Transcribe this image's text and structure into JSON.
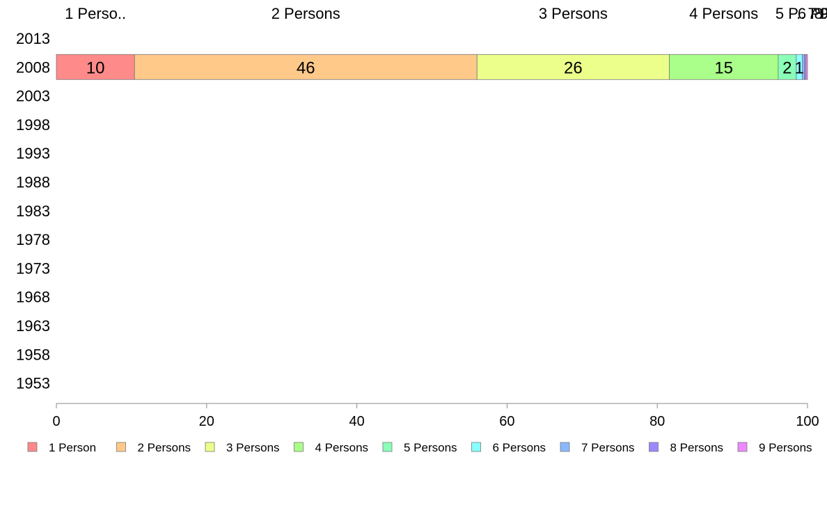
{
  "chart_data": {
    "type": "bar",
    "orientation": "horizontal",
    "stacked": true,
    "categories": [
      "2013",
      "2008",
      "2003",
      "1998",
      "1993",
      "1988",
      "1983",
      "1978",
      "1973",
      "1968",
      "1963",
      "1958",
      "1953"
    ],
    "xlim": [
      0,
      100
    ],
    "xticks": [
      0,
      20,
      40,
      60,
      80,
      100
    ],
    "grid": false,
    "legend_position": "bottom",
    "top_labels": [
      "1 Perso..",
      "2 Persons",
      "3 Persons",
      "4 Persons",
      "5 P..",
      "6 P..",
      "7 P..",
      "8 P..",
      "9 P.."
    ],
    "series": [
      {
        "name": "1 Person",
        "color": "#ff8a8a",
        "values": [
          null,
          10.4,
          null,
          null,
          null,
          null,
          null,
          null,
          null,
          null,
          null,
          null,
          null
        ],
        "label": "10"
      },
      {
        "name": "2 Persons",
        "color": "#ffc98a",
        "values": [
          null,
          45.6,
          null,
          null,
          null,
          null,
          null,
          null,
          null,
          null,
          null,
          null,
          null
        ],
        "label": "46"
      },
      {
        "name": "3 Persons",
        "color": "#ecff8a",
        "values": [
          null,
          25.6,
          null,
          null,
          null,
          null,
          null,
          null,
          null,
          null,
          null,
          null,
          null
        ],
        "label": "26"
      },
      {
        "name": "4 Persons",
        "color": "#aaff8a",
        "values": [
          null,
          14.5,
          null,
          null,
          null,
          null,
          null,
          null,
          null,
          null,
          null,
          null,
          null
        ],
        "label": "15"
      },
      {
        "name": "5 Persons",
        "color": "#8affb8",
        "values": [
          null,
          2.4,
          null,
          null,
          null,
          null,
          null,
          null,
          null,
          null,
          null,
          null,
          null
        ],
        "label": "2"
      },
      {
        "name": "6 Persons",
        "color": "#8affff",
        "values": [
          null,
          0.8,
          null,
          null,
          null,
          null,
          null,
          null,
          null,
          null,
          null,
          null,
          null
        ],
        "label": "1"
      },
      {
        "name": "7 Persons",
        "color": "#8ab8ff",
        "values": [
          null,
          0.3,
          null,
          null,
          null,
          null,
          null,
          null,
          null,
          null,
          null,
          null,
          null
        ],
        "label": ""
      },
      {
        "name": "8 Persons",
        "color": "#9a8aff",
        "values": [
          null,
          0.2,
          null,
          null,
          null,
          null,
          null,
          null,
          null,
          null,
          null,
          null,
          null
        ],
        "label": ""
      },
      {
        "name": "9 Persons",
        "color": "#ee8aff",
        "values": [
          null,
          0.2,
          null,
          null,
          null,
          null,
          null,
          null,
          null,
          null,
          null,
          null,
          null
        ],
        "label": ""
      }
    ]
  }
}
